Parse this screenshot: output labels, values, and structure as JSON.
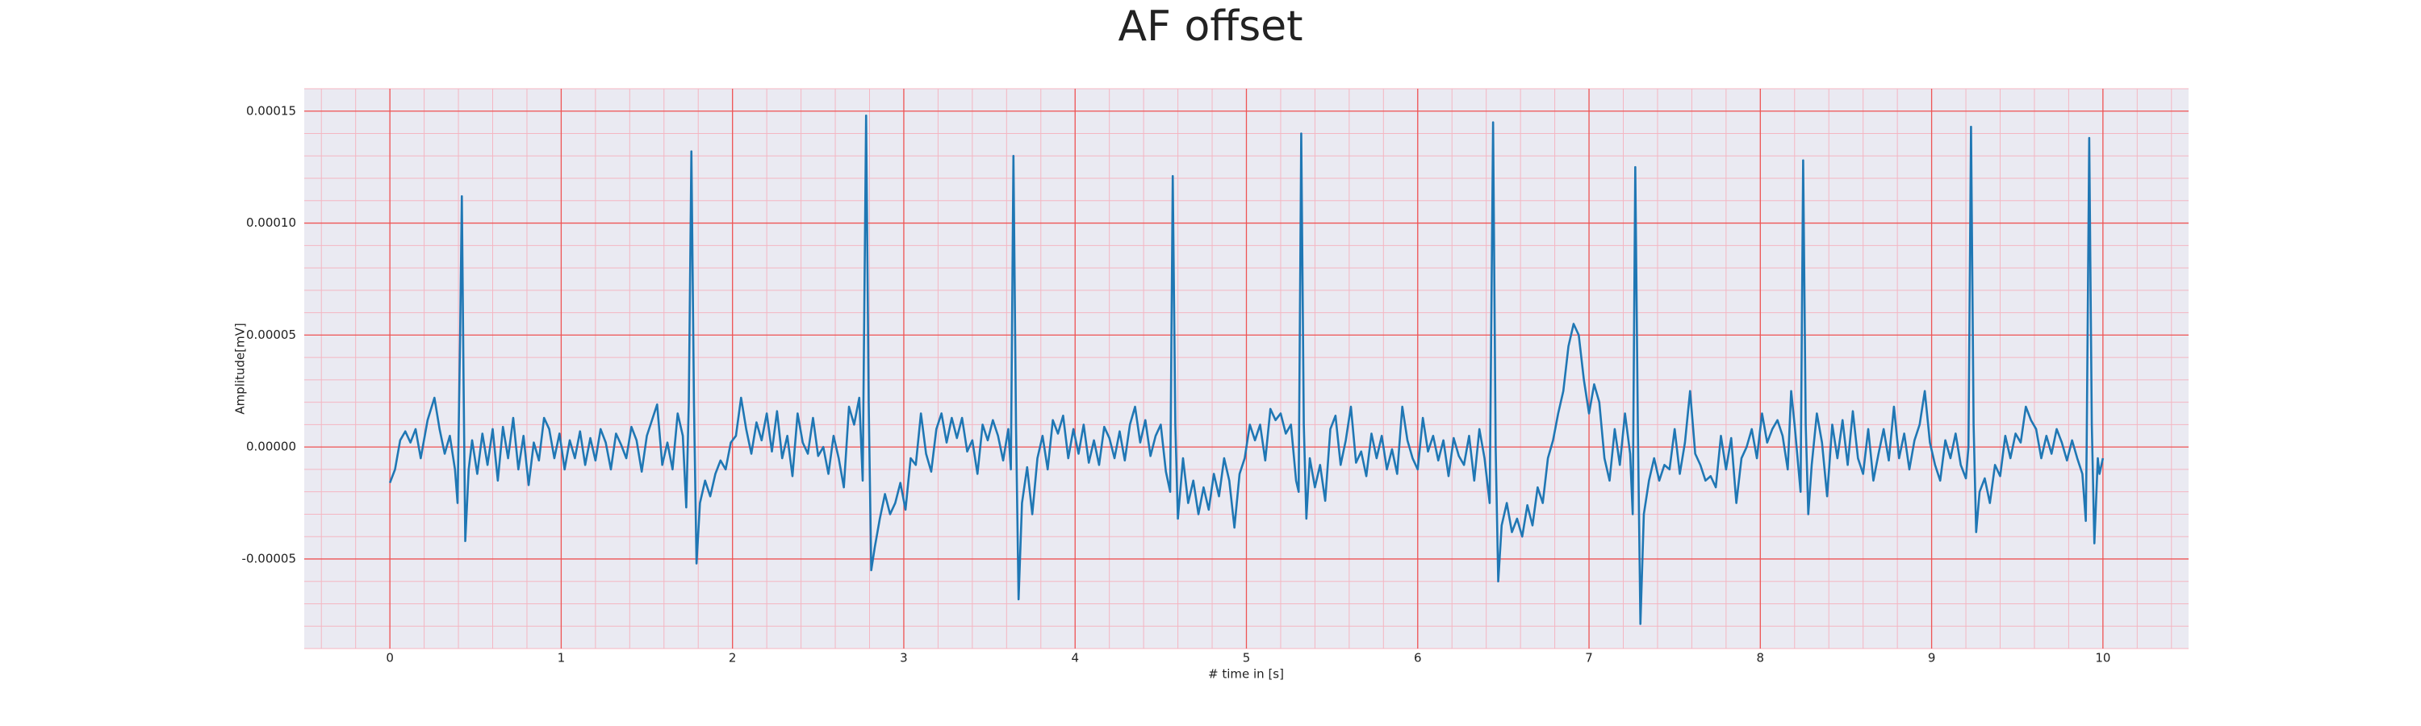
{
  "chart_data": {
    "type": "line",
    "title": "AF offset",
    "x_label": "# time in [s]",
    "y_label": "Amplitude[mV]",
    "color": "#1f77b4",
    "grid": true,
    "minor_grid": true,
    "xlim": [
      -0.5,
      10.5
    ],
    "xticks": [
      0,
      1,
      2,
      3,
      4,
      5,
      6,
      7,
      8,
      9,
      10
    ],
    "ylim": [
      -9e-05,
      0.00016
    ],
    "yticks": [
      -5e-05,
      {
        "value": 0,
        "label": "0.00000"
      },
      5e-05,
      {
        "value": 0.0001,
        "label": "0.00010"
      },
      0.00015
    ],
    "x": [
      0.0,
      0.03,
      0.06,
      0.09,
      0.12,
      0.15,
      0.18,
      0.22,
      0.26,
      0.29,
      0.32,
      0.35,
      0.38,
      0.395,
      0.41,
      0.42,
      0.43,
      0.44,
      0.46,
      0.48,
      0.51,
      0.54,
      0.57,
      0.6,
      0.63,
      0.66,
      0.69,
      0.72,
      0.75,
      0.78,
      0.81,
      0.84,
      0.87,
      0.9,
      0.93,
      0.96,
      0.99,
      1.02,
      1.05,
      1.08,
      1.11,
      1.14,
      1.17,
      1.2,
      1.23,
      1.26,
      1.29,
      1.32,
      1.35,
      1.38,
      1.41,
      1.44,
      1.47,
      1.5,
      1.53,
      1.56,
      1.59,
      1.62,
      1.65,
      1.68,
      1.71,
      1.73,
      1.745,
      1.76,
      1.775,
      1.79,
      1.81,
      1.84,
      1.87,
      1.9,
      1.93,
      1.96,
      1.99,
      2.02,
      2.05,
      2.08,
      2.11,
      2.14,
      2.17,
      2.2,
      2.23,
      2.26,
      2.29,
      2.32,
      2.35,
      2.38,
      2.41,
      2.44,
      2.47,
      2.5,
      2.53,
      2.56,
      2.59,
      2.62,
      2.65,
      2.68,
      2.71,
      2.74,
      2.76,
      2.78,
      2.795,
      2.81,
      2.83,
      2.86,
      2.89,
      2.92,
      2.95,
      2.98,
      3.01,
      3.04,
      3.07,
      3.1,
      3.13,
      3.16,
      3.19,
      3.22,
      3.25,
      3.28,
      3.31,
      3.34,
      3.37,
      3.4,
      3.43,
      3.46,
      3.49,
      3.52,
      3.55,
      3.58,
      3.61,
      3.625,
      3.64,
      3.655,
      3.67,
      3.69,
      3.72,
      3.75,
      3.78,
      3.81,
      3.84,
      3.87,
      3.9,
      3.93,
      3.96,
      3.99,
      4.02,
      4.05,
      4.08,
      4.11,
      4.14,
      4.17,
      4.2,
      4.23,
      4.26,
      4.29,
      4.32,
      4.35,
      4.38,
      4.41,
      4.44,
      4.47,
      4.5,
      4.53,
      4.555,
      4.57,
      4.585,
      4.6,
      4.63,
      4.66,
      4.69,
      4.72,
      4.75,
      4.78,
      4.81,
      4.84,
      4.87,
      4.9,
      4.93,
      4.96,
      4.99,
      5.02,
      5.05,
      5.08,
      5.11,
      5.14,
      5.17,
      5.2,
      5.23,
      5.26,
      5.29,
      5.305,
      5.32,
      5.335,
      5.35,
      5.37,
      5.4,
      5.43,
      5.46,
      5.49,
      5.52,
      5.55,
      5.58,
      5.61,
      5.64,
      5.67,
      5.7,
      5.73,
      5.76,
      5.79,
      5.82,
      5.85,
      5.88,
      5.91,
      5.94,
      5.97,
      6.0,
      6.03,
      6.06,
      6.09,
      6.12,
      6.15,
      6.18,
      6.21,
      6.24,
      6.27,
      6.3,
      6.33,
      6.36,
      6.39,
      6.42,
      6.44,
      6.455,
      6.47,
      6.49,
      6.52,
      6.55,
      6.58,
      6.61,
      6.64,
      6.67,
      6.7,
      6.73,
      6.76,
      6.79,
      6.82,
      6.85,
      6.88,
      6.91,
      6.94,
      6.97,
      7.0,
      7.03,
      7.06,
      7.09,
      7.12,
      7.15,
      7.18,
      7.21,
      7.24,
      7.255,
      7.27,
      7.285,
      7.3,
      7.32,
      7.35,
      7.38,
      7.41,
      7.44,
      7.47,
      7.5,
      7.53,
      7.56,
      7.59,
      7.62,
      7.65,
      7.68,
      7.71,
      7.74,
      7.77,
      7.8,
      7.83,
      7.86,
      7.89,
      7.92,
      7.95,
      7.98,
      8.01,
      8.04,
      8.07,
      8.1,
      8.13,
      8.16,
      8.18,
      8.2,
      8.235,
      8.25,
      8.265,
      8.28,
      8.3,
      8.33,
      8.36,
      8.39,
      8.42,
      8.45,
      8.48,
      8.51,
      8.54,
      8.57,
      8.6,
      8.63,
      8.66,
      8.69,
      8.72,
      8.75,
      8.78,
      8.81,
      8.84,
      8.87,
      8.9,
      8.93,
      8.96,
      8.99,
      9.02,
      9.05,
      9.08,
      9.11,
      9.14,
      9.17,
      9.2,
      9.215,
      9.23,
      9.245,
      9.26,
      9.28,
      9.31,
      9.34,
      9.37,
      9.4,
      9.43,
      9.46,
      9.49,
      9.52,
      9.55,
      9.58,
      9.61,
      9.64,
      9.67,
      9.7,
      9.73,
      9.76,
      9.79,
      9.82,
      9.85,
      9.88,
      9.9,
      9.905,
      9.92,
      9.935,
      9.95,
      9.97,
      9.98,
      10.0
    ],
    "values": [
      -1.6e-05,
      -1e-05,
      3e-06,
      7e-06,
      2e-06,
      8e-06,
      -5e-06,
      1.2e-05,
      2.2e-05,
      8e-06,
      -3e-06,
      5e-06,
      -1e-05,
      -2.5e-05,
      5e-05,
      0.000112,
      3e-05,
      -4.2e-05,
      -1e-05,
      3e-06,
      -1.2e-05,
      6e-06,
      -8e-06,
      8e-06,
      -1.5e-05,
      9e-06,
      -5e-06,
      1.3e-05,
      -1e-05,
      5e-06,
      -1.7e-05,
      2e-06,
      -6e-06,
      1.3e-05,
      8e-06,
      -5e-06,
      6e-06,
      -1e-05,
      3e-06,
      -5e-06,
      7e-06,
      -8e-06,
      4e-06,
      -6e-06,
      8e-06,
      2e-06,
      -1e-05,
      6e-06,
      1e-06,
      -5e-06,
      9e-06,
      3e-06,
      -1.1e-05,
      5e-06,
      1.2e-05,
      1.9e-05,
      -8e-06,
      2e-06,
      -1e-05,
      1.5e-05,
      5e-06,
      -2.7e-05,
      2e-05,
      0.000132,
      2e-05,
      -5.2e-05,
      -2.5e-05,
      -1.5e-05,
      -2.2e-05,
      -1.2e-05,
      -6e-06,
      -1e-05,
      2e-06,
      5e-06,
      2.2e-05,
      8e-06,
      -3e-06,
      1.1e-05,
      3e-06,
      1.5e-05,
      -2e-06,
      1.6e-05,
      -5e-06,
      5e-06,
      -1.3e-05,
      1.5e-05,
      2e-06,
      -3e-06,
      1.3e-05,
      -4e-06,
      0,
      -1.2e-05,
      5e-06,
      -5e-06,
      -1.8e-05,
      1.8e-05,
      1e-05,
      2.2e-05,
      -1.5e-05,
      0.000148,
      2e-05,
      -5.5e-05,
      -4.5e-05,
      -3.2e-05,
      -2.1e-05,
      -3e-05,
      -2.5e-05,
      -1.6e-05,
      -2.8e-05,
      -5e-06,
      -8e-06,
      1.5e-05,
      -3e-06,
      -1.1e-05,
      8e-06,
      1.5e-05,
      2e-06,
      1.3e-05,
      4e-06,
      1.3e-05,
      -2e-06,
      3e-06,
      -1.2e-05,
      1e-05,
      3e-06,
      1.2e-05,
      5e-06,
      -6e-06,
      8e-06,
      -1e-05,
      0.00013,
      1e-05,
      -6.8e-05,
      -2.5e-05,
      -9e-06,
      -3e-05,
      -5e-06,
      5e-06,
      -1e-05,
      1.2e-05,
      6e-06,
      1.4e-05,
      -5e-06,
      8e-06,
      -3e-06,
      1e-05,
      -7e-06,
      3e-06,
      -8e-06,
      9e-06,
      4e-06,
      -5e-06,
      7e-06,
      -6e-06,
      1e-05,
      1.8e-05,
      2e-06,
      1.2e-05,
      -4e-06,
      5e-06,
      1e-05,
      -1.1e-05,
      -2e-05,
      0.000121,
      1e-05,
      -3.2e-05,
      -5e-06,
      -2.5e-05,
      -1.5e-05,
      -3e-05,
      -1.8e-05,
      -2.8e-05,
      -1.2e-05,
      -2.2e-05,
      -5e-06,
      -1.5e-05,
      -3.6e-05,
      -1.2e-05,
      -5e-06,
      1e-05,
      3e-06,
      1e-05,
      -6e-06,
      1.7e-05,
      1.2e-05,
      1.5e-05,
      6e-06,
      1e-05,
      -1.5e-05,
      -2e-05,
      0.00014,
      1e-05,
      -3.2e-05,
      -5e-06,
      -1.8e-05,
      -8e-06,
      -2.4e-05,
      8e-06,
      1.4e-05,
      -8e-06,
      3e-06,
      1.8e-05,
      -7e-06,
      -2e-06,
      -1.3e-05,
      6e-06,
      -5e-06,
      5e-06,
      -1e-05,
      -1e-06,
      -1.2e-05,
      1.8e-05,
      3e-06,
      -5e-06,
      -1e-05,
      1.3e-05,
      -2e-06,
      5e-06,
      -6e-06,
      3e-06,
      -1.3e-05,
      4e-06,
      -4e-06,
      -8e-06,
      5e-06,
      -1.5e-05,
      8e-06,
      -5e-06,
      -2.5e-05,
      0.000145,
      0,
      -6e-05,
      -3.5e-05,
      -2.5e-05,
      -3.8e-05,
      -3.2e-05,
      -4e-05,
      -2.6e-05,
      -3.5e-05,
      -1.8e-05,
      -2.5e-05,
      -5e-06,
      3e-06,
      1.5e-05,
      2.5e-05,
      4.5e-05,
      5.5e-05,
      5e-05,
      3e-05,
      1.5e-05,
      2.8e-05,
      2e-05,
      -5e-06,
      -1.5e-05,
      8e-06,
      -8e-06,
      1.5e-05,
      -3e-06,
      -3e-05,
      0.000125,
      1e-05,
      -7.9e-05,
      -3e-05,
      -1.5e-05,
      -5e-06,
      -1.5e-05,
      -8e-06,
      -1e-05,
      8e-06,
      -1.2e-05,
      2e-06,
      2.5e-05,
      -3e-06,
      -8e-06,
      -1.5e-05,
      -1.3e-05,
      -1.8e-05,
      5e-06,
      -1e-05,
      4e-06,
      -2.5e-05,
      -5e-06,
      0,
      8e-06,
      -5e-06,
      1.5e-05,
      2e-06,
      8e-06,
      1.2e-05,
      5e-06,
      -1e-05,
      2.5e-05,
      1e-05,
      -2e-05,
      0.000128,
      1e-05,
      -3e-05,
      -8e-06,
      1.5e-05,
      2e-06,
      -2.2e-05,
      1e-05,
      -5e-06,
      1.2e-05,
      -8e-06,
      1.6e-05,
      -5e-06,
      -1.2e-05,
      8e-06,
      -1.5e-05,
      -3e-06,
      8e-06,
      -6e-06,
      1.8e-05,
      -5e-06,
      6e-06,
      -1e-05,
      3e-06,
      1e-05,
      2.5e-05,
      2e-06,
      -8e-06,
      -1.5e-05,
      3e-06,
      -5e-06,
      6e-06,
      -8e-06,
      -1.4e-05,
      0,
      0.000143,
      1e-05,
      -3.8e-05,
      -2e-05,
      -1.4e-05,
      -2.5e-05,
      -8e-06,
      -1.3e-05,
      5e-06,
      -5e-06,
      6e-06,
      2e-06,
      1.8e-05,
      1.2e-05,
      8e-06,
      -5e-06,
      5e-06,
      -3e-06,
      8e-06,
      2e-06,
      -6e-06,
      3e-06,
      -5e-06,
      -1.2e-05,
      -3.3e-05,
      0,
      0.000138,
      1e-05,
      -4.3e-05,
      -5e-06,
      -1.2e-05,
      -5e-06
    ]
  }
}
